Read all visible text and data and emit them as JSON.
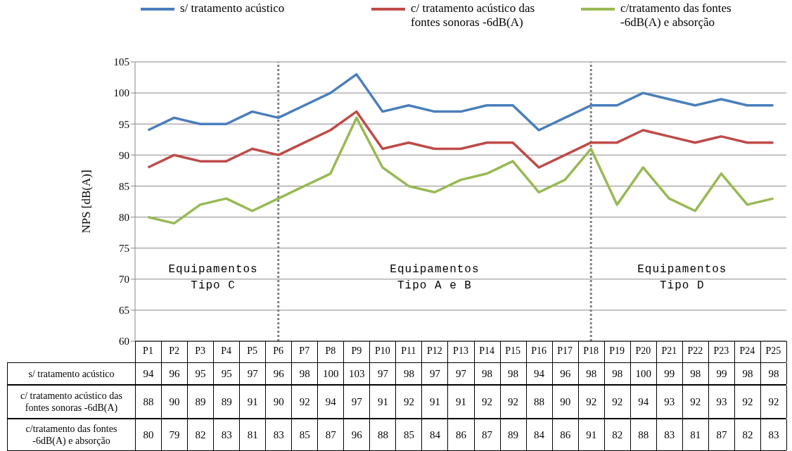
{
  "chart_data": {
    "type": "line",
    "ylabel": "NPS [dB(A)]",
    "categories": [
      "P1",
      "P2",
      "P3",
      "P4",
      "P5",
      "P6",
      "P7",
      "P8",
      "P9",
      "P10",
      "P11",
      "P12",
      "P13",
      "P14",
      "P15",
      "P16",
      "P17",
      "P18",
      "P19",
      "P20",
      "P21",
      "P22",
      "P23",
      "P24",
      "P25"
    ],
    "series": [
      {
        "name": "s/ tratamento acústico",
        "color": "#4a7ebb",
        "values": [
          94,
          96,
          95,
          95,
          97,
          96,
          98,
          100,
          103,
          97,
          98,
          97,
          97,
          98,
          98,
          94,
          96,
          98,
          98,
          100,
          99,
          98,
          99,
          98,
          98
        ]
      },
      {
        "name": "c/ tratamento acústico das fontes sonoras -6dB(A)",
        "color": "#be4b48",
        "values": [
          88,
          90,
          89,
          89,
          91,
          90,
          92,
          94,
          97,
          91,
          92,
          91,
          91,
          92,
          92,
          88,
          90,
          92,
          92,
          94,
          93,
          92,
          93,
          92,
          92
        ]
      },
      {
        "name": "c/tratamento das fontes -6dB(A) e absorção",
        "color": "#98b954",
        "values": [
          80,
          79,
          82,
          83,
          81,
          83,
          85,
          87,
          96,
          88,
          85,
          84,
          86,
          87,
          89,
          84,
          86,
          91,
          82,
          88,
          83,
          81,
          87,
          82,
          83
        ]
      }
    ],
    "ylim": [
      60,
      105
    ],
    "yticks": [
      60,
      65,
      70,
      75,
      80,
      85,
      90,
      95,
      100,
      105
    ],
    "grid": "y",
    "legend": "top",
    "marker": "none",
    "line_style": "solid",
    "data_labels": true,
    "ref_lines": [
      {
        "axis": "x",
        "value": "P6",
        "color": "#808080",
        "line_style": "dotted"
      },
      {
        "axis": "x",
        "value": "P18",
        "color": "#808080",
        "line_style": "dotted"
      }
    ],
    "annotations": [
      "Equipamentos\nTipo C",
      "Equipamentos\nTipo A e B",
      "Equipamentos\nTipo D"
    ]
  }
}
